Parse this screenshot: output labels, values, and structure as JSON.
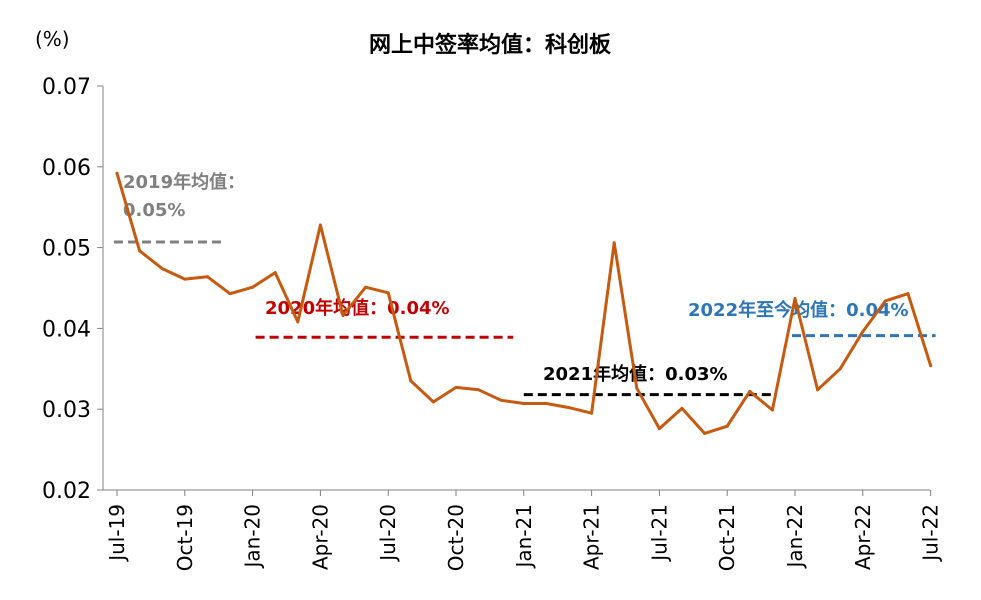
{
  "chart_data": {
    "type": "line",
    "title": "网上中签率均值：科创板",
    "unit_label": "(%)",
    "ylim": [
      0.02,
      0.07
    ],
    "yticks": [
      "0.02",
      "0.03",
      "0.04",
      "0.05",
      "0.06",
      "0.07"
    ],
    "xticks": [
      "Jul-19",
      "Oct-19",
      "Jan-20",
      "Apr-20",
      "Jul-20",
      "Oct-20",
      "Jan-21",
      "Apr-21",
      "Jul-21",
      "Oct-21",
      "Jan-22",
      "Apr-22",
      "Jul-22"
    ],
    "x": [
      "2019-07",
      "2019-08",
      "2019-09",
      "2019-10",
      "2019-11",
      "2019-12",
      "2020-01",
      "2020-02",
      "2020-03",
      "2020-04",
      "2020-05",
      "2020-06",
      "2020-07",
      "2020-08",
      "2020-09",
      "2020-10",
      "2020-11",
      "2020-12",
      "2021-01",
      "2021-02",
      "2021-03",
      "2021-04",
      "2021-05",
      "2021-06",
      "2021-07",
      "2021-08",
      "2021-09",
      "2021-10",
      "2021-11",
      "2021-12",
      "2022-01",
      "2022-02",
      "2022-03",
      "2022-04",
      "2022-05",
      "2022-06",
      "2022-07"
    ],
    "series": [
      {
        "color": "#c55a11",
        "values": [
          0.0592,
          0.0496,
          0.0474,
          0.0461,
          0.0464,
          0.0443,
          0.0451,
          0.0469,
          0.0408,
          0.0528,
          0.0416,
          0.0451,
          0.0444,
          0.0335,
          0.0309,
          0.0327,
          0.0324,
          0.0311,
          0.0307,
          0.0307,
          0.0302,
          0.0295,
          0.0506,
          0.0326,
          0.0276,
          0.0301,
          0.027,
          0.0279,
          0.0322,
          0.0299,
          0.0437,
          0.0324,
          0.035,
          0.0396,
          0.0434,
          0.0443,
          0.0354
        ]
      }
    ],
    "annotations": [
      {
        "text_line1": "2019年均值：",
        "text_line2": "0.05%",
        "value": 0.0507,
        "x_start": "2019-07",
        "x_end": "2019-12",
        "color": "#808080"
      },
      {
        "text": "2020年均值：0.04%",
        "value": 0.0389,
        "x_start": "2020-01",
        "x_end": "2020-12",
        "color": "#c00000"
      },
      {
        "text": "2021年均值：0.03%",
        "value": 0.0318,
        "x_start": "2021-01",
        "x_end": "2021-12",
        "color": "#000000"
      },
      {
        "text": "2022年至今均值：0.04%",
        "value": 0.0391,
        "x_start": "2022-01",
        "x_end": "2022-07",
        "color": "#2e75b6"
      }
    ],
    "grid": false,
    "legend": "none"
  }
}
